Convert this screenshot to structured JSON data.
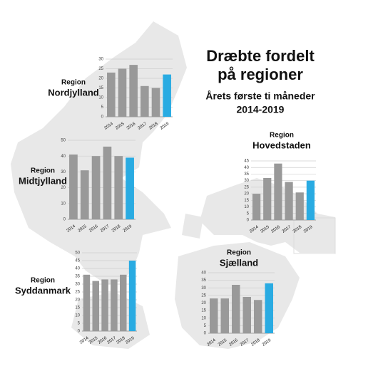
{
  "header": {
    "title": [
      "Dræbte fordelt",
      "på regioner"
    ],
    "subtitle": [
      "Årets første ti måneder",
      "2014-2019"
    ]
  },
  "chart_data": [
    {
      "type": "bar",
      "subtitle": "Region",
      "title": "Nordjylland",
      "categories": [
        "2014",
        "2015",
        "2016",
        "2017",
        "2018",
        "2019"
      ],
      "values": [
        23,
        25,
        27,
        16,
        15,
        22
      ],
      "colors": [
        "#999999",
        "#999999",
        "#999999",
        "#999999",
        "#999999",
        "#29abe2"
      ],
      "ylim": [
        0,
        30
      ],
      "yticks": [
        0,
        5,
        10,
        15,
        20,
        25,
        30
      ],
      "grid": true
    },
    {
      "type": "bar",
      "subtitle": "Region",
      "title": "Midtjylland",
      "categories": [
        "2014",
        "2015",
        "2016",
        "2017",
        "2018",
        "2019"
      ],
      "values": [
        41,
        31,
        40,
        46,
        40,
        39
      ],
      "colors": [
        "#999999",
        "#999999",
        "#999999",
        "#999999",
        "#999999",
        "#29abe2"
      ],
      "ylim": [
        0,
        50
      ],
      "yticks": [
        0,
        10,
        20,
        30,
        40,
        50
      ],
      "grid": true
    },
    {
      "type": "bar",
      "subtitle": "Region",
      "title": "Hovedstaden",
      "categories": [
        "2014",
        "2015",
        "2016",
        "2017",
        "2018",
        "2019"
      ],
      "values": [
        20,
        32,
        43,
        29,
        21,
        30
      ],
      "colors": [
        "#999999",
        "#999999",
        "#999999",
        "#999999",
        "#999999",
        "#29abe2"
      ],
      "ylim": [
        0,
        45
      ],
      "yticks": [
        0,
        5,
        10,
        15,
        20,
        25,
        30,
        35,
        40,
        45
      ],
      "grid": true
    },
    {
      "type": "bar",
      "subtitle": "Region",
      "title": "Syddanmark",
      "categories": [
        "2014",
        "2015",
        "2016",
        "2017",
        "2018",
        "2019"
      ],
      "values": [
        36,
        32,
        33,
        33,
        36,
        45
      ],
      "colors": [
        "#999999",
        "#999999",
        "#999999",
        "#999999",
        "#999999",
        "#29abe2"
      ],
      "ylim": [
        0,
        50
      ],
      "yticks": [
        0,
        5,
        10,
        15,
        20,
        25,
        30,
        35,
        40,
        45,
        50
      ],
      "grid": true
    },
    {
      "type": "bar",
      "subtitle": "Region",
      "title": "Sjælland",
      "categories": [
        "2014",
        "2015",
        "2016",
        "2017",
        "2018",
        "2019"
      ],
      "values": [
        23,
        23,
        32,
        24,
        22,
        33
      ],
      "colors": [
        "#999999",
        "#999999",
        "#999999",
        "#999999",
        "#999999",
        "#29abe2"
      ],
      "ylim": [
        0,
        40
      ],
      "yticks": [
        0,
        5,
        10,
        15,
        20,
        25,
        30,
        35,
        40
      ],
      "grid": true
    }
  ]
}
